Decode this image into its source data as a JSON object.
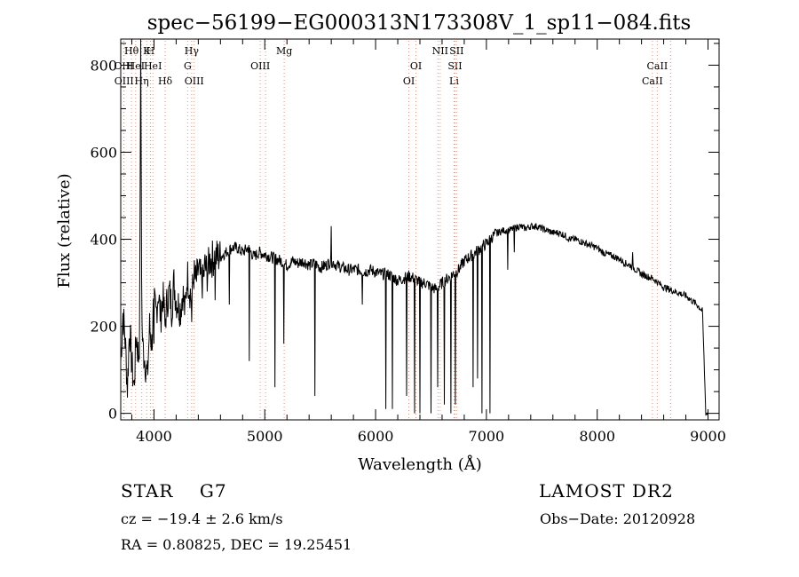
{
  "chart_data": {
    "type": "line",
    "title": "spec−56199−EG000313N173308V_1_sp11−084.fits",
    "xlabel": "Wavelength (Å)",
    "ylabel": "Flux (relative)",
    "xlim": [
      3700,
      9100
    ],
    "ylim": [
      -15,
      860
    ],
    "x_ticks": [
      4000,
      5000,
      6000,
      7000,
      8000,
      9000
    ],
    "y_ticks": [
      0,
      200,
      400,
      600,
      800
    ],
    "grid": false,
    "line_color": "#000000",
    "marker_color": "#d09a8a",
    "series": [
      {
        "x": [
          3700,
          3720,
          3740,
          3760,
          3780,
          3800,
          3820,
          3840,
          3860,
          3870,
          3880,
          3890,
          3900,
          3920,
          3940,
          3960,
          3980,
          4000,
          4020,
          4040,
          4060,
          4080,
          4100,
          4120,
          4140,
          4160,
          4180,
          4200,
          4220,
          4240,
          4260,
          4280,
          4300,
          4320,
          4340,
          4360,
          4380,
          4400,
          4420,
          4440,
          4460,
          4480,
          4500,
          4550,
          4600,
          4650,
          4700,
          4750,
          4800,
          4850,
          4900,
          4950,
          5000,
          5050,
          5100,
          5150,
          5200,
          5250,
          5300,
          5350,
          5400,
          5450,
          5500,
          5550,
          5600,
          5650,
          5700,
          5750,
          5800,
          5850,
          5900,
          5950,
          6000,
          6050,
          6100,
          6150,
          6200,
          6250,
          6300,
          6350,
          6400,
          6450,
          6500,
          6550,
          6600,
          6650,
          6700,
          6750,
          6800,
          6850,
          6900,
          6950,
          7000,
          7050,
          7100,
          7150,
          7200,
          7250,
          7300,
          7350,
          7400,
          7450,
          7500,
          7550,
          7600,
          7650,
          7700,
          7750,
          7800,
          7850,
          7900,
          7950,
          8000,
          8050,
          8100,
          8150,
          8200,
          8250,
          8300,
          8350,
          8400,
          8450,
          8500,
          8550,
          8600,
          8650,
          8700,
          8750,
          8800,
          8850,
          8900,
          8950,
          8980,
          9000
        ],
        "y": [
          120,
          230,
          170,
          60,
          200,
          110,
          60,
          180,
          130,
          170,
          860,
          210,
          150,
          120,
          80,
          200,
          160,
          250,
          230,
          280,
          220,
          270,
          210,
          260,
          280,
          240,
          300,
          260,
          250,
          240,
          280,
          230,
          320,
          290,
          260,
          320,
          300,
          330,
          310,
          300,
          340,
          320,
          350,
          360,
          360,
          370,
          380,
          380,
          370,
          380,
          360,
          370,
          365,
          360,
          355,
          350,
          340,
          350,
          345,
          350,
          340,
          345,
          335,
          340,
          350,
          340,
          335,
          330,
          330,
          330,
          325,
          330,
          325,
          320,
          320,
          315,
          305,
          310,
          315,
          310,
          300,
          300,
          290,
          285,
          300,
          310,
          320,
          330,
          350,
          360,
          370,
          380,
          390,
          405,
          415,
          420,
          420,
          425,
          430,
          425,
          430,
          430,
          425,
          420,
          415,
          415,
          410,
          400,
          400,
          395,
          390,
          385,
          380,
          370,
          365,
          360,
          355,
          345,
          340,
          330,
          320,
          315,
          310,
          300,
          290,
          285,
          280,
          275,
          270,
          260,
          250,
          235,
          0,
          0
        ]
      }
    ],
    "absorption_dips": [
      {
        "x": 4000,
        "y": 160
      },
      {
        "x": 4100,
        "y": 200
      },
      {
        "x": 4340,
        "y": 210
      },
      {
        "x": 4550,
        "y": 260
      },
      {
        "x": 4680,
        "y": 250
      },
      {
        "x": 4860,
        "y": 120
      },
      {
        "x": 5090,
        "y": 60
      },
      {
        "x": 5170,
        "y": 160
      },
      {
        "x": 5450,
        "y": 40
      },
      {
        "x": 5880,
        "y": 250
      },
      {
        "x": 6090,
        "y": 10
      },
      {
        "x": 6150,
        "y": 10
      },
      {
        "x": 6280,
        "y": 40
      },
      {
        "x": 6350,
        "y": 0
      },
      {
        "x": 6400,
        "y": 0
      },
      {
        "x": 6500,
        "y": 0
      },
      {
        "x": 6560,
        "y": 60
      },
      {
        "x": 6620,
        "y": 20
      },
      {
        "x": 6680,
        "y": 0
      },
      {
        "x": 6720,
        "y": 20
      },
      {
        "x": 6880,
        "y": 60
      },
      {
        "x": 6920,
        "y": 80
      },
      {
        "x": 6960,
        "y": 0
      },
      {
        "x": 7030,
        "y": 0
      },
      {
        "x": 7190,
        "y": 330
      },
      {
        "x": 7250,
        "y": 370
      }
    ],
    "emission_spikes": [
      {
        "x": 5600,
        "y": 430
      },
      {
        "x": 8320,
        "y": 370
      }
    ],
    "line_markers": [
      {
        "x": 3797,
        "label": "Hθ",
        "row": 0
      },
      {
        "x": 3727,
        "label": "OIII",
        "row": 1
      },
      {
        "x": 3730,
        "label": "OIII",
        "row": 2
      },
      {
        "x": 3835,
        "label": "HeI",
        "row": 1
      },
      {
        "x": 3889,
        "label": "Hη",
        "row": 2
      },
      {
        "x": 3934,
        "label": "K",
        "row": 0
      },
      {
        "x": 3968,
        "label": "H",
        "row": 0
      },
      {
        "x": 3990,
        "label": "HeI",
        "row": 1
      },
      {
        "x": 4101,
        "label": "Hδ",
        "row": 2
      },
      {
        "x": 4304,
        "label": "G",
        "row": 1
      },
      {
        "x": 4340,
        "label": "Hγ",
        "row": 0
      },
      {
        "x": 4363,
        "label": "OIII",
        "row": 2
      },
      {
        "x": 4959,
        "label": "OIII",
        "row": 1
      },
      {
        "x": 5007,
        "label": "",
        "row": 1
      },
      {
        "x": 5175,
        "label": "Mg",
        "row": 0
      },
      {
        "x": 6300,
        "label": "OI",
        "row": 2
      },
      {
        "x": 6364,
        "label": "OI",
        "row": 1
      },
      {
        "x": 6563,
        "label": "",
        "row": 0
      },
      {
        "x": 6583,
        "label": "NII",
        "row": 0
      },
      {
        "x": 6708,
        "label": "Li",
        "row": 2
      },
      {
        "x": 6716,
        "label": "SII",
        "row": 1
      },
      {
        "x": 6731,
        "label": "SII",
        "row": 0
      },
      {
        "x": 8498,
        "label": "CaII",
        "row": 2
      },
      {
        "x": 8542,
        "label": "CaII",
        "row": 1
      },
      {
        "x": 8662,
        "label": "",
        "row": 1
      }
    ]
  },
  "annotations": {
    "object_class": "STAR",
    "subclass": "G7",
    "survey": "LAMOST DR2",
    "cz": "cz = −19.4 ± 2.6 km/s",
    "obs_date": "Obs−Date: 20120928",
    "radec": "RA =    0.80825, DEC =   19.25451"
  }
}
